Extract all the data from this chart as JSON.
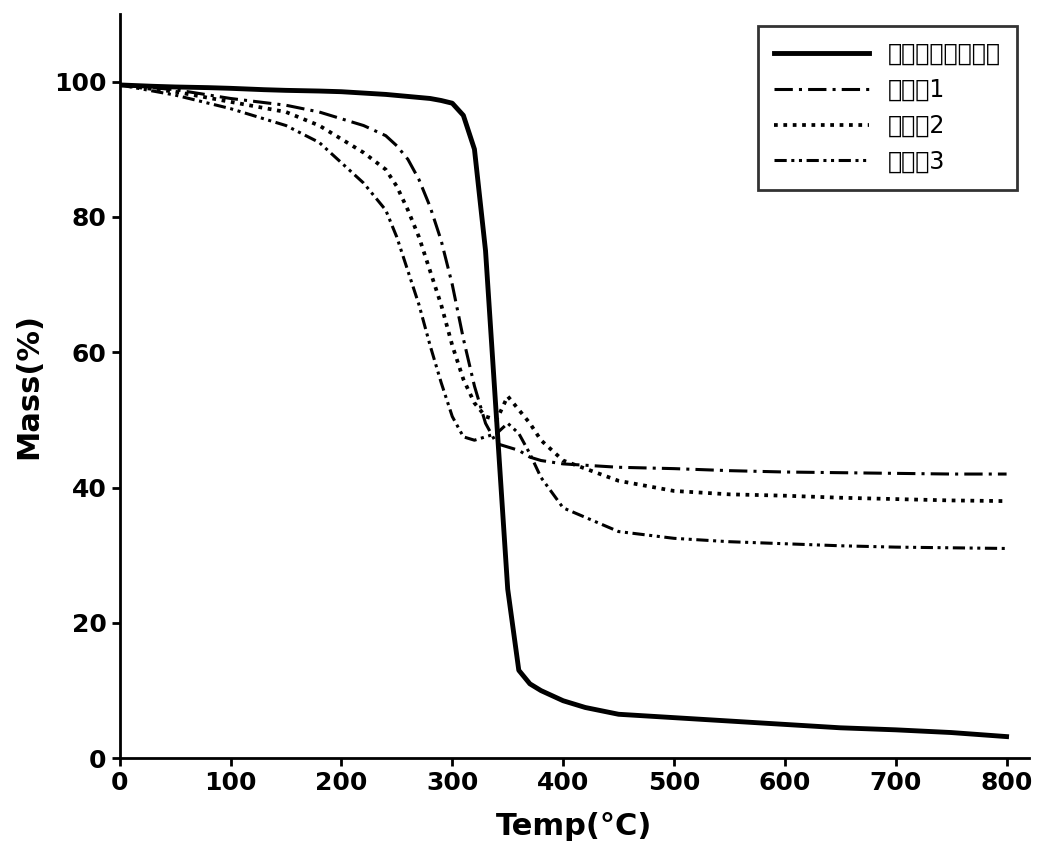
{
  "title": "",
  "xlabel": "Temp(°C)",
  "ylabel": "Mass(%)",
  "xlim": [
    0,
    820
  ],
  "ylim": [
    0,
    110
  ],
  "xticks": [
    0,
    100,
    200,
    300,
    400,
    500,
    600,
    700,
    800
  ],
  "yticks": [
    0,
    20,
    40,
    60,
    80,
    100
  ],
  "legend_labels": [
    "未改性微晶纤维素",
    "实施例1",
    "实施例2",
    "实施例3"
  ],
  "line_color": "#000000",
  "background_color": "#ffffff",
  "curve0_x": [
    0,
    30,
    50,
    80,
    100,
    130,
    150,
    180,
    200,
    220,
    240,
    260,
    280,
    290,
    300,
    310,
    320,
    330,
    340,
    350,
    360,
    370,
    380,
    400,
    420,
    450,
    500,
    550,
    600,
    650,
    700,
    750,
    800
  ],
  "curve0_y": [
    99.5,
    99.3,
    99.2,
    99.1,
    99.0,
    98.8,
    98.7,
    98.6,
    98.5,
    98.3,
    98.1,
    97.8,
    97.5,
    97.2,
    96.8,
    95.0,
    90.0,
    75.0,
    50.0,
    25.0,
    13.0,
    11.0,
    10.0,
    8.5,
    7.5,
    6.5,
    6.0,
    5.5,
    5.0,
    4.5,
    4.2,
    3.8,
    3.2
  ],
  "curve1_x": [
    0,
    50,
    100,
    150,
    180,
    200,
    220,
    240,
    250,
    260,
    270,
    280,
    290,
    300,
    310,
    320,
    330,
    340,
    350,
    360,
    370,
    380,
    400,
    450,
    500,
    550,
    600,
    650,
    700,
    750,
    800
  ],
  "curve1_y": [
    99.5,
    98.8,
    97.5,
    96.5,
    95.5,
    94.5,
    93.5,
    92.0,
    90.5,
    88.5,
    85.5,
    81.5,
    76.5,
    70.0,
    62.0,
    55.0,
    49.5,
    46.5,
    46.0,
    45.5,
    44.5,
    44.0,
    43.5,
    43.0,
    42.8,
    42.5,
    42.3,
    42.2,
    42.1,
    42.0,
    42.0
  ],
  "curve2_x": [
    0,
    50,
    100,
    150,
    180,
    200,
    220,
    240,
    250,
    260,
    270,
    280,
    290,
    300,
    310,
    320,
    330,
    340,
    350,
    360,
    370,
    380,
    400,
    450,
    500,
    550,
    600,
    650,
    700,
    750,
    800
  ],
  "curve2_y": [
    99.5,
    98.5,
    97.0,
    95.5,
    93.5,
    91.5,
    89.5,
    87.0,
    84.5,
    81.0,
    77.0,
    72.0,
    67.0,
    61.0,
    56.0,
    52.5,
    50.5,
    50.0,
    53.5,
    51.5,
    49.5,
    47.0,
    44.0,
    41.0,
    39.5,
    39.0,
    38.8,
    38.5,
    38.3,
    38.1,
    38.0
  ],
  "curve3_x": [
    0,
    50,
    100,
    150,
    180,
    200,
    220,
    240,
    250,
    260,
    270,
    280,
    290,
    300,
    310,
    320,
    330,
    340,
    350,
    360,
    370,
    380,
    400,
    450,
    500,
    550,
    600,
    650,
    700,
    750,
    800
  ],
  "curve3_y": [
    99.5,
    98.0,
    96.0,
    93.5,
    91.0,
    88.0,
    85.0,
    81.0,
    77.0,
    72.0,
    67.0,
    61.0,
    55.5,
    50.5,
    47.5,
    47.0,
    47.5,
    48.0,
    49.5,
    48.0,
    45.0,
    41.5,
    37.0,
    33.5,
    32.5,
    32.0,
    31.7,
    31.4,
    31.2,
    31.1,
    31.0
  ],
  "legend_loc": "upper right",
  "label_fontsize": 22,
  "tick_fontsize": 18,
  "legend_fontsize": 17,
  "linewidth_solid": 3.5,
  "linewidth_dashed": 2.2
}
